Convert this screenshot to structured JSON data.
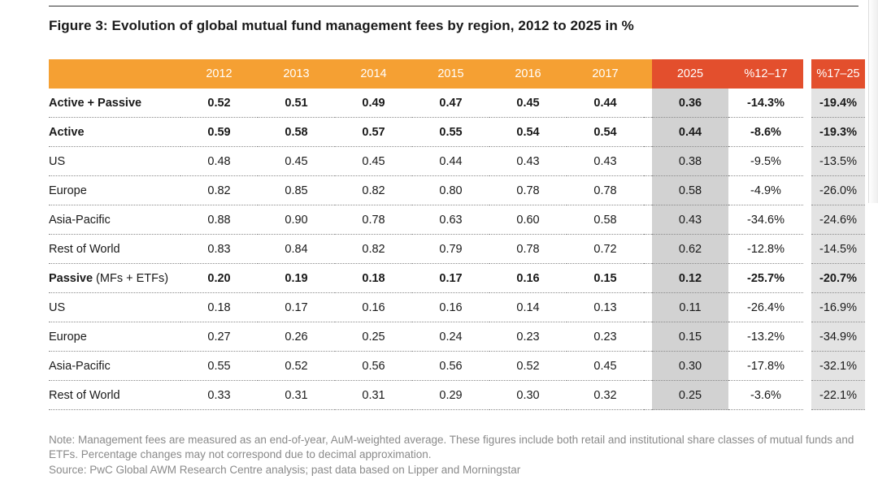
{
  "chart_data": {
    "type": "table",
    "title": "Figure 3: Evolution of global mutual fund management fees by region, 2012 to 2025 in %",
    "columns": [
      "2012",
      "2013",
      "2014",
      "2015",
      "2016",
      "2017",
      "2025",
      "%12–17",
      "%17–25"
    ],
    "rows": [
      {
        "label": "Active + Passive",
        "label_suffix": "",
        "bold": true,
        "values": [
          "0.52",
          "0.51",
          "0.49",
          "0.47",
          "0.45",
          "0.44",
          "0.36",
          "-14.3%",
          "-19.4%"
        ]
      },
      {
        "label": "Active",
        "label_suffix": "",
        "bold": true,
        "values": [
          "0.59",
          "0.58",
          "0.57",
          "0.55",
          "0.54",
          "0.54",
          "0.44",
          "-8.6%",
          "-19.3%"
        ]
      },
      {
        "label": "US",
        "label_suffix": "",
        "bold": false,
        "values": [
          "0.48",
          "0.45",
          "0.45",
          "0.44",
          "0.43",
          "0.43",
          "0.38",
          "-9.5%",
          "-13.5%"
        ]
      },
      {
        "label": "Europe",
        "label_suffix": "",
        "bold": false,
        "values": [
          "0.82",
          "0.85",
          "0.82",
          "0.80",
          "0.78",
          "0.78",
          "0.58",
          "-4.9%",
          "-26.0%"
        ]
      },
      {
        "label": "Asia-Pacific",
        "label_suffix": "",
        "bold": false,
        "values": [
          "0.88",
          "0.90",
          "0.78",
          "0.63",
          "0.60",
          "0.58",
          "0.43",
          "-34.6%",
          "-24.6%"
        ]
      },
      {
        "label": "Rest of World",
        "label_suffix": "",
        "bold": false,
        "values": [
          "0.83",
          "0.84",
          "0.82",
          "0.79",
          "0.78",
          "0.72",
          "0.62",
          "-12.8%",
          "-14.5%"
        ]
      },
      {
        "label": "Passive",
        "label_suffix": " (MFs + ETFs)",
        "bold": true,
        "values": [
          "0.20",
          "0.19",
          "0.18",
          "0.17",
          "0.16",
          "0.15",
          "0.12",
          "-25.7%",
          "-20.7%"
        ]
      },
      {
        "label": "US",
        "label_suffix": "",
        "bold": false,
        "values": [
          "0.18",
          "0.17",
          "0.16",
          "0.16",
          "0.14",
          "0.13",
          "0.11",
          "-26.4%",
          "-16.9%"
        ]
      },
      {
        "label": "Europe",
        "label_suffix": "",
        "bold": false,
        "values": [
          "0.27",
          "0.26",
          "0.25",
          "0.24",
          "0.23",
          "0.23",
          "0.15",
          "-13.2%",
          "-34.9%"
        ]
      },
      {
        "label": "Asia-Pacific",
        "label_suffix": "",
        "bold": false,
        "values": [
          "0.55",
          "0.52",
          "0.56",
          "0.56",
          "0.52",
          "0.45",
          "0.30",
          "-17.8%",
          "-32.1%"
        ]
      },
      {
        "label": "Rest of World",
        "label_suffix": "",
        "bold": false,
        "values": [
          "0.33",
          "0.31",
          "0.31",
          "0.29",
          "0.30",
          "0.32",
          "0.25",
          "-3.6%",
          "-22.1%"
        ]
      }
    ]
  },
  "note": "Note: Management fees are measured as an end-of-year, AuM-weighted average. These figures include both retail and institutional share classes of mutual funds and ETFs. Percentage changes may not correspond due to decimal approximation.",
  "source": "Source: PwC Global AWM Research Centre analysis; past data based on Lipper and Morningstar",
  "colors": {
    "header_historical": "#f5a033",
    "header_projection": "#e34f2d",
    "col_2025_bg": "#d2d2d2",
    "col_pct2_bg": "#e3e3e3",
    "footnote_text": "#8a8a8a"
  }
}
